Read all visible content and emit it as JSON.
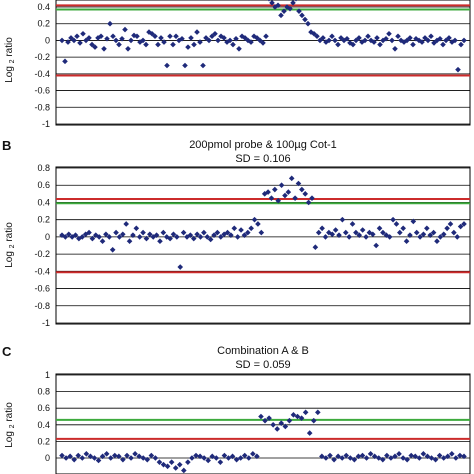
{
  "chart_data": [
    {
      "type": "scatter",
      "panel_label": "",
      "title": "",
      "subtitle": "",
      "ylabel": "Log 2 ratio",
      "ylim": [
        -1,
        0.4
      ],
      "yticks": [
        "0.4",
        "0.2",
        "0",
        "-0.2",
        "-0.4",
        "-0.6",
        "-0.8",
        "-1"
      ],
      "threshold_lines": [
        {
          "y": 0.42,
          "color": "#cc2b2b"
        },
        {
          "y": 0.37,
          "color": "#3daa3d"
        },
        {
          "y": -0.42,
          "color": "#cc2b2b"
        }
      ],
      "marker_color": "#1f2a7a",
      "series": [
        {
          "x": [
            1,
            2,
            3,
            4,
            5,
            6,
            7,
            8,
            9,
            10,
            11,
            12,
            13,
            14,
            15,
            16,
            17,
            18,
            19,
            20,
            21,
            22,
            23,
            24,
            25,
            26,
            27,
            28,
            29,
            30,
            31,
            32,
            33,
            34,
            35,
            36,
            37,
            38,
            39,
            40,
            41,
            42,
            43,
            44,
            45,
            46,
            47,
            48,
            49,
            50,
            51,
            52,
            53,
            54,
            55,
            56,
            57,
            58,
            59,
            60,
            61,
            62,
            63,
            64,
            65,
            66,
            67,
            68,
            69,
            70,
            71,
            72,
            73,
            74,
            75,
            76,
            77,
            78,
            79,
            80,
            81,
            82,
            83,
            84,
            85,
            86,
            87,
            88,
            89,
            90,
            91,
            92,
            93,
            94,
            95,
            96,
            97,
            98,
            99,
            100,
            101,
            102,
            103,
            104,
            105,
            106,
            107,
            108,
            109,
            110,
            111,
            112,
            113,
            114,
            115,
            116,
            117,
            118,
            119,
            120,
            121,
            122,
            123,
            124,
            125,
            126,
            127,
            128,
            129,
            130,
            131,
            132,
            133,
            134,
            135
          ],
          "y": [
            0,
            -0.25,
            -0.02,
            0.03,
            0,
            0.05,
            -0.03,
            0.08,
            0,
            0.03,
            -0.05,
            -0.08,
            0.03,
            0.05,
            -0.1,
            0.02,
            0.2,
            0.05,
            0,
            -0.05,
            0.02,
            0.13,
            -0.1,
            0,
            0.06,
            0.05,
            -0.02,
            0,
            -0.05,
            0.1,
            0.08,
            0.05,
            -0.05,
            0.03,
            -0.02,
            -0.3,
            0.05,
            -0.05,
            0.05,
            0,
            0.02,
            -0.3,
            -0.08,
            0.03,
            -0.05,
            0.1,
            -0.02,
            -0.3,
            0.03,
            0,
            0.05,
            0.08,
            0,
            0.05,
            0.03,
            -0.02,
            0,
            -0.05,
            0.02,
            -0.1,
            0.05,
            0.03,
            0,
            -0.02,
            0.05,
            0.03,
            0,
            -0.03,
            0.05,
            0.5,
            0.45,
            0.4,
            0.42,
            0.3,
            0.35,
            0.4,
            0.38,
            0.45,
            0.5,
            0.35,
            0.3,
            0.25,
            0.2,
            0.1,
            0.08,
            0.05,
            0,
            0.03,
            -0.02,
            0,
            0.05,
            0,
            -0.05,
            0.03,
            0,
            0.02,
            -0.03,
            -0.05,
            0,
            0.03,
            -0.02,
            0,
            0.05,
            0,
            -0.02,
            0.03,
            -0.05,
            0,
            0.02,
            0.08,
            0,
            -0.1,
            0.05,
            0,
            -0.02,
            0,
            0.03,
            -0.05,
            0.02,
            0,
            -0.02,
            0.03,
            0,
            0.05,
            -0.03,
            0,
            0.02,
            -0.05,
            0,
            0.03,
            -0.02,
            0,
            -0.35,
            -0.05,
            0
          ]
        }
      ]
    },
    {
      "type": "scatter",
      "panel_label": "B",
      "title": "200pmol probe & 100µg Cot-1",
      "subtitle": "SD = 0.106",
      "ylabel": "Log 2 ratio",
      "ylim": [
        -1,
        0.8
      ],
      "yticks": [
        "0.8",
        "0.6",
        "0.4",
        "0.2",
        "0",
        "-0.2",
        "-0.4",
        "-0.6",
        "-0.8",
        "-1"
      ],
      "threshold_lines": [
        {
          "y": 0.44,
          "color": "#cc2b2b"
        },
        {
          "y": 0.39,
          "color": "#3daa3d"
        },
        {
          "y": -0.41,
          "color": "#cc2b2b"
        }
      ],
      "marker_color": "#1f2a7a",
      "series": [
        {
          "x": [
            1,
            2,
            3,
            4,
            5,
            6,
            7,
            8,
            9,
            10,
            11,
            12,
            13,
            14,
            15,
            16,
            17,
            18,
            19,
            20,
            21,
            22,
            23,
            24,
            25,
            26,
            27,
            28,
            29,
            30,
            31,
            32,
            33,
            34,
            35,
            36,
            37,
            38,
            39,
            40,
            41,
            42,
            43,
            44,
            45,
            46,
            47,
            48,
            49,
            50,
            51,
            52,
            53,
            54,
            55,
            56,
            57,
            58,
            59,
            60,
            61,
            62,
            63,
            64,
            65,
            66,
            67,
            68,
            69,
            70,
            71,
            72,
            73,
            74,
            75,
            76,
            77,
            78,
            79,
            80,
            81,
            82,
            83,
            84,
            85,
            86,
            87,
            88,
            89,
            90,
            91,
            92,
            93,
            94,
            95,
            96,
            97,
            98,
            99,
            100,
            101,
            102,
            103,
            104,
            105,
            106,
            107,
            108,
            109,
            110,
            111,
            112,
            113,
            114,
            115,
            116,
            117,
            118,
            119,
            120
          ],
          "y": [
            0.02,
            0,
            0.03,
            0,
            0.02,
            -0.02,
            0,
            0.03,
            0.05,
            -0.02,
            0.02,
            0,
            -0.05,
            0.03,
            0,
            -0.15,
            0.05,
            0,
            0.03,
            0.15,
            -0.05,
            0.02,
            0.1,
            0,
            0.05,
            -0.02,
            0.03,
            0,
            0.02,
            -0.05,
            0.05,
            0,
            -0.02,
            0.03,
            0,
            -0.35,
            0.05,
            0,
            0.02,
            -0.02,
            0.03,
            0,
            0.05,
            0,
            -0.03,
            0.02,
            0.05,
            0,
            0.03,
            0.05,
            0.02,
            0.1,
            0,
            0.08,
            0.02,
            0.05,
            0.1,
            0.2,
            0.15,
            0.05,
            0.5,
            0.52,
            0.45,
            0.55,
            0.42,
            0.6,
            0.48,
            0.52,
            0.68,
            0.45,
            0.62,
            0.55,
            0.5,
            0.4,
            0.45,
            -0.12,
            0.05,
            0.1,
            0,
            0.05,
            0.03,
            0.08,
            0.02,
            0.2,
            0.05,
            0,
            0.15,
            0.05,
            0.02,
            0.08,
            0,
            0.05,
            0.03,
            -0.1,
            0.1,
            0.05,
            0.02,
            0,
            0.2,
            0.15,
            0.05,
            0.1,
            -0.05,
            0.02,
            0.18,
            0.05,
            0,
            0.03,
            0.1,
            0.02,
            0.05,
            -0.05,
            0,
            0.03,
            0.1,
            0.15,
            0.05,
            0,
            0.12,
            0.15
          ]
        }
      ]
    },
    {
      "type": "scatter",
      "panel_label": "C",
      "title": "Combination A & B",
      "subtitle": "SD = 0.059",
      "ylabel": "Log 2 ratio",
      "ylim": [
        -1,
        1
      ],
      "yticks": [
        "1",
        "0.8",
        "0.6",
        "0.4",
        "0.2",
        "0"
      ],
      "threshold_lines": [
        {
          "y": 0.46,
          "color": "#3daa3d"
        },
        {
          "y": 0.23,
          "color": "#cc2b2b"
        }
      ],
      "marker_color": "#1f2a7a",
      "series": [
        {
          "x": [
            1,
            2,
            3,
            4,
            5,
            6,
            7,
            8,
            9,
            10,
            11,
            12,
            13,
            14,
            15,
            16,
            17,
            18,
            19,
            20,
            21,
            22,
            23,
            24,
            25,
            26,
            27,
            28,
            29,
            30,
            31,
            32,
            33,
            34,
            35,
            36,
            37,
            38,
            39,
            40,
            41,
            42,
            43,
            44,
            45,
            46,
            47,
            48,
            49,
            50,
            51,
            52,
            53,
            54,
            55,
            56,
            57,
            58,
            59,
            60,
            61,
            62,
            63,
            64,
            65,
            66,
            67,
            68,
            69,
            70,
            71,
            72,
            73,
            74,
            75,
            76,
            77,
            78,
            79,
            80,
            81,
            82,
            83,
            84,
            85,
            86,
            87,
            88,
            89,
            90,
            91,
            92,
            93,
            94,
            95,
            96,
            97,
            98,
            99,
            100
          ],
          "y": [
            0.03,
            0,
            0.02,
            -0.02,
            0.03,
            0,
            0.05,
            0.02,
            0,
            -0.03,
            0.02,
            0.05,
            0,
            0.03,
            0.02,
            -0.02,
            0.03,
            0,
            0.05,
            0.02,
            0,
            -0.02,
            0.03,
            0,
            -0.05,
            -0.08,
            -0.1,
            -0.05,
            -0.12,
            -0.08,
            -0.15,
            -0.05,
            0,
            0.03,
            0.02,
            0,
            -0.03,
            0.02,
            0,
            -0.05,
            0.03,
            0,
            0.02,
            -0.02,
            0,
            0.03,
            0,
            0.05,
            0.02,
            0.5,
            0.45,
            0.48,
            0.4,
            0.35,
            0.42,
            0.38,
            0.45,
            0.52,
            0.5,
            0.48,
            0.55,
            0.3,
            0.45,
            0.55,
            0.02,
            0,
            0.03,
            -0.02,
            0.02,
            0,
            0.03,
            0,
            -0.02,
            0.02,
            0.03,
            0,
            0.05,
            0.02,
            0,
            -0.02,
            0.03,
            0,
            0.02,
            0.05,
            0,
            -0.02,
            0.03,
            0.02,
            0,
            0.05,
            0.02,
            0,
            -0.02,
            0.03,
            0,
            0.02,
            0.05,
            0,
            0.03,
            0.02
          ]
        }
      ]
    }
  ]
}
